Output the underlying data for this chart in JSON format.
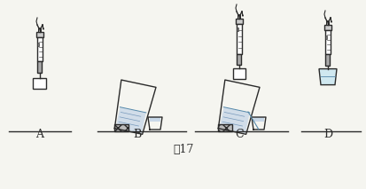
{
  "title": "图17",
  "labels": [
    "A",
    "B",
    "C",
    "D"
  ],
  "bg_color": "#f5f5f0",
  "line_color": "#2a2a2a",
  "water_color": "#c8d8e8",
  "hatch_color": "#555555",
  "fig_width": 4.14,
  "fig_height": 2.13,
  "dpi": 100
}
